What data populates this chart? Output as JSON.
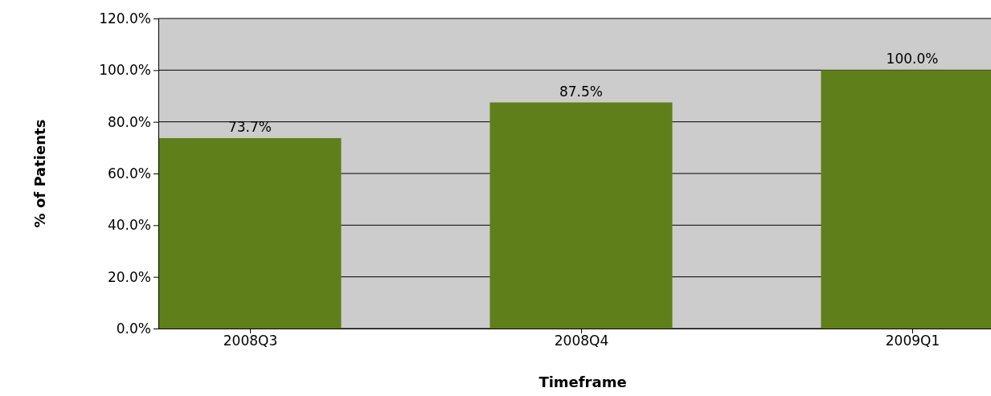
{
  "chart_data": {
    "type": "bar",
    "xlabel": "Timeframe",
    "ylabel": "% of Patients",
    "categories": [
      "2008Q3",
      "2008Q4",
      "2009Q1"
    ],
    "values": [
      73.7,
      87.5,
      100.0
    ],
    "color": "#5f7f1a",
    "value_labels": [
      "73.7%",
      "87.5%",
      "100.0%"
    ],
    "ylim": [
      0,
      120
    ],
    "yticks": [
      {
        "value": 0,
        "label": "0.0%"
      },
      {
        "value": 20,
        "label": "20.0%"
      },
      {
        "value": 40,
        "label": "40.0%"
      },
      {
        "value": 60,
        "label": "60.0%"
      },
      {
        "value": 80,
        "label": "80.0%"
      },
      {
        "value": 100,
        "label": "100.0%"
      },
      {
        "value": 120,
        "label": "120.0%"
      }
    ],
    "grid": "y"
  }
}
